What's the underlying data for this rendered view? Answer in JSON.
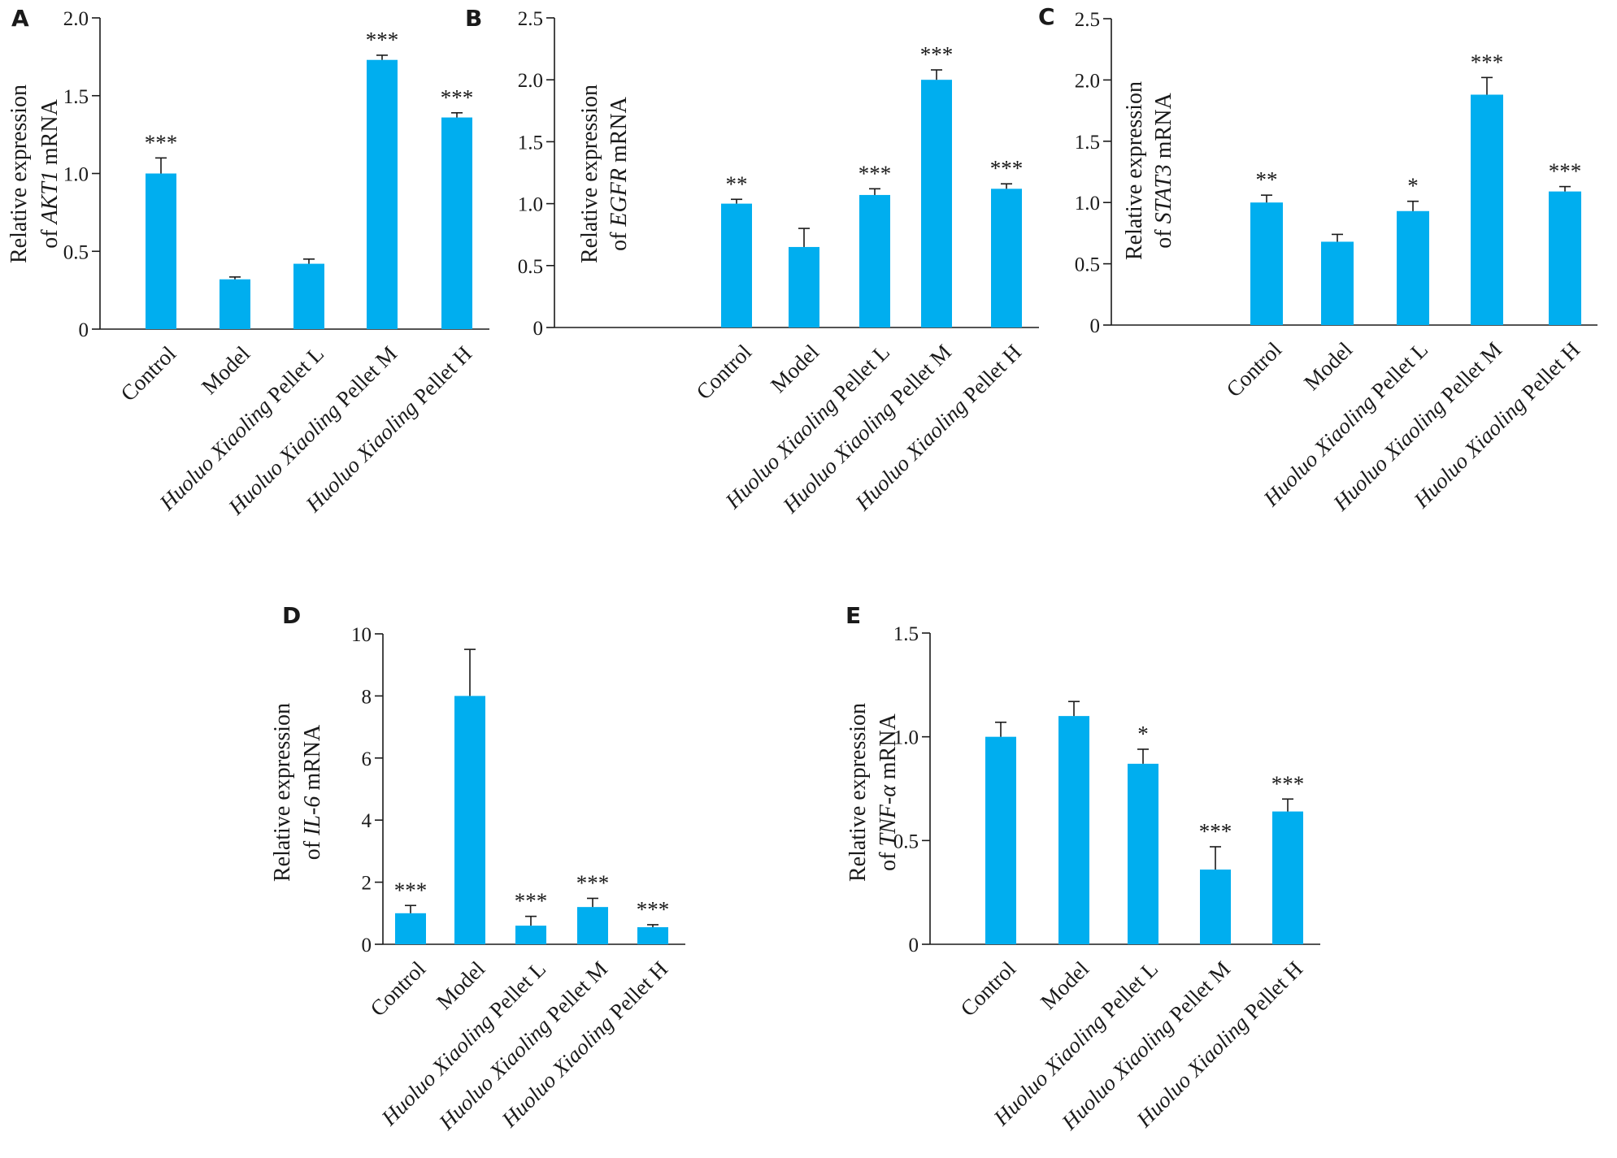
{
  "chart_data": [
    {
      "panel": "A",
      "type": "bar",
      "categories": [
        "Control",
        "Model",
        "Huoluo Xiaoling Pellet L",
        "Huoluo Xiaoling Pellet M",
        "Huoluo Xiaoling Pellet H"
      ],
      "values": [
        1.0,
        0.32,
        0.42,
        1.73,
        1.36
      ],
      "errors": [
        0.1,
        0.015,
        0.03,
        0.03,
        0.03
      ],
      "significance": [
        "***",
        "",
        "",
        "***",
        "***"
      ],
      "ylabel_line1": "Relative expression",
      "ylabel_pre": "of ",
      "ylabel_gene": "AKT1",
      "ylabel_post": " mRNA",
      "ylim": [
        0,
        2.0
      ],
      "ticks": [
        0,
        0.5,
        1.0,
        1.5,
        2.0
      ],
      "tick_labels": [
        "0",
        "0.5",
        "1.0",
        "1.5",
        "2.0"
      ],
      "bar_color": "#00AEEF"
    },
    {
      "panel": "B",
      "type": "bar",
      "categories": [
        "Control",
        "Model",
        "Huoluo Xiaoling Pellet L",
        "Huoluo Xiaoling Pellet M",
        "Huoluo Xiaoling Pellet H"
      ],
      "values": [
        1.0,
        0.65,
        1.07,
        2.0,
        1.12
      ],
      "errors": [
        0.035,
        0.15,
        0.05,
        0.08,
        0.04
      ],
      "significance": [
        "**",
        "",
        "***",
        "***",
        "***"
      ],
      "ylabel_line1": "Relative expression",
      "ylabel_pre": "of ",
      "ylabel_gene": "EGFR",
      "ylabel_post": " mRNA",
      "ylim": [
        0,
        2.5
      ],
      "ticks": [
        0,
        0.5,
        1.0,
        1.5,
        2.0,
        2.5
      ],
      "tick_labels": [
        "0",
        "0.5",
        "1.0",
        "1.5",
        "2.0",
        "2.5"
      ],
      "bar_color": "#00AEEF"
    },
    {
      "panel": "C",
      "type": "bar",
      "categories": [
        "Control",
        "Model",
        "Huoluo Xiaoling Pellet L",
        "Huoluo Xiaoling Pellet M",
        "Huoluo Xiaoling Pellet H"
      ],
      "values": [
        1.0,
        0.68,
        0.93,
        1.88,
        1.09
      ],
      "errors": [
        0.06,
        0.06,
        0.08,
        0.14,
        0.04
      ],
      "significance": [
        "**",
        "",
        "*",
        "***",
        "***"
      ],
      "ylabel_line1": "Relative expression",
      "ylabel_pre": "of ",
      "ylabel_gene": "STAT3",
      "ylabel_post": " mRNA",
      "ylim": [
        0,
        2.5
      ],
      "ticks": [
        0,
        0.5,
        1.0,
        1.5,
        2.0,
        2.5
      ],
      "tick_labels": [
        "0",
        "0.5",
        "1.0",
        "1.5",
        "2.0",
        "2.5"
      ],
      "bar_color": "#00AEEF"
    },
    {
      "panel": "D",
      "type": "bar",
      "categories": [
        "Control",
        "Model",
        "Huoluo Xiaoling Pellet L",
        "Huoluo Xiaoling Pellet M",
        "Huoluo Xiaoling Pellet H"
      ],
      "values": [
        1.0,
        8.0,
        0.6,
        1.2,
        0.55
      ],
      "errors": [
        0.25,
        1.5,
        0.3,
        0.28,
        0.08
      ],
      "significance": [
        "***",
        "",
        "***",
        "***",
        "***"
      ],
      "ylabel_line1": "Relative expression",
      "ylabel_pre": "of ",
      "ylabel_gene": "IL-6",
      "ylabel_post": " mRNA",
      "ylim": [
        0,
        10
      ],
      "ticks": [
        0,
        2,
        4,
        6,
        8,
        10
      ],
      "tick_labels": [
        "0",
        "2",
        "4",
        "6",
        "8",
        "10"
      ],
      "bar_color": "#00AEEF"
    },
    {
      "panel": "E",
      "type": "bar",
      "categories": [
        "Control",
        "Model",
        "Huoluo Xiaoling Pellet L",
        "Huoluo Xiaoling Pellet M",
        "Huoluo Xiaoling Pellet H"
      ],
      "values": [
        1.0,
        1.1,
        0.87,
        0.36,
        0.64
      ],
      "errors": [
        0.07,
        0.07,
        0.07,
        0.11,
        0.06
      ],
      "significance": [
        "",
        "",
        "*",
        "***",
        "***"
      ],
      "ylabel_line1": "Relative expression",
      "ylabel_pre": "of ",
      "ylabel_gene": "TNF-α",
      "ylabel_post": " mRNA",
      "ylim": [
        0,
        1.5
      ],
      "ticks": [
        0,
        0.5,
        1.0,
        1.5
      ],
      "tick_labels": [
        "0",
        "0.5",
        "1.0",
        "1.5"
      ],
      "bar_color": "#00AEEF"
    }
  ]
}
